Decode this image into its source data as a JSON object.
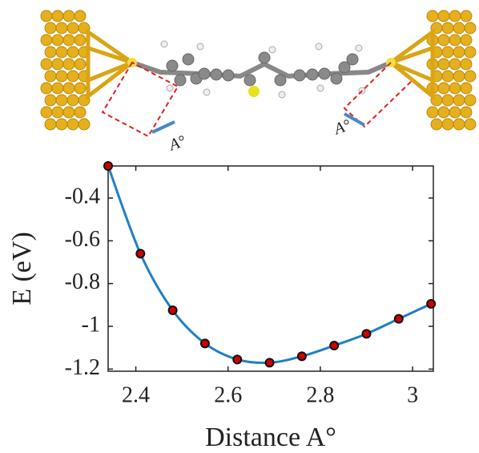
{
  "chart_data": {
    "type": "line",
    "x_label": "Distance A°",
    "y_label": "E (eV)",
    "annotations": [
      "A°",
      "A°"
    ],
    "x": [
      2.34,
      2.41,
      2.48,
      2.55,
      2.62,
      2.69,
      2.76,
      2.83,
      2.9,
      2.97,
      3.04
    ],
    "series": [
      {
        "color": "#1f7fc4",
        "marker_color": "#d00000",
        "values": [
          -0.25,
          -0.66,
          -0.925,
          -1.08,
          -1.155,
          -1.17,
          -1.14,
          -1.09,
          -1.035,
          -0.965,
          -0.895
        ]
      }
    ],
    "xlim": [
      2.34,
      3.045
    ],
    "xticks": [
      2.4,
      2.6,
      2.8,
      3
    ],
    "ylim": [
      -1.21,
      -0.25
    ],
    "yticks": [
      -0.4,
      -0.6,
      -0.8,
      -1,
      -1.2
    ]
  }
}
